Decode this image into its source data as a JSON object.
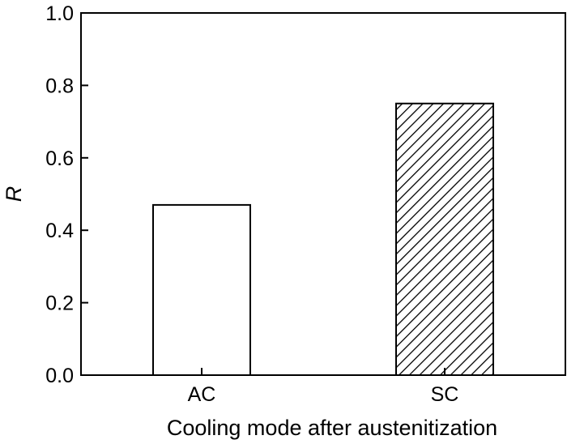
{
  "chart_data": {
    "type": "bar",
    "title": "",
    "xlabel": "Cooling mode after austenitization",
    "ylabel": "R",
    "categories": [
      "AC",
      "SC"
    ],
    "values": [
      0.47,
      0.75
    ],
    "bar_fills": [
      "white",
      "hatched"
    ],
    "ylim": [
      0.0,
      1.0
    ],
    "yticks": [
      "0.0",
      "0.2",
      "0.4",
      "0.6",
      "0.8",
      "1.0"
    ],
    "grid": false,
    "legend": "none"
  }
}
